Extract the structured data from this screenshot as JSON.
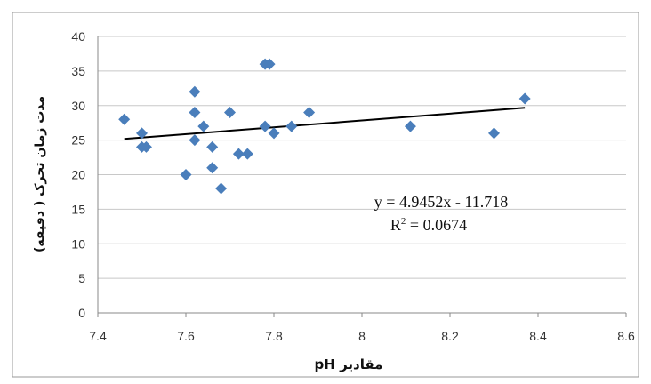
{
  "chart_data": {
    "type": "scatter",
    "title": "",
    "xlabel": "مقادیر pH",
    "ylabel": "مدت زمان تحرک ( دقیقه)",
    "xlim": [
      7.4,
      8.6
    ],
    "ylim": [
      0,
      40
    ],
    "xticks": [
      "7.4",
      "7.6",
      "7.8",
      "8",
      "8.2",
      "8.4",
      "8.6"
    ],
    "yticks": [
      "0",
      "5",
      "10",
      "15",
      "20",
      "25",
      "30",
      "35",
      "40"
    ],
    "grid": true,
    "marker_color": "#4A7EBB",
    "trendline_color": "#000000",
    "x": [
      7.46,
      7.5,
      7.5,
      7.51,
      7.6,
      7.62,
      7.62,
      7.62,
      7.64,
      7.66,
      7.66,
      7.68,
      7.7,
      7.72,
      7.74,
      7.78,
      7.78,
      7.79,
      7.8,
      7.84,
      7.88,
      8.11,
      8.3,
      8.37
    ],
    "y": [
      28,
      26,
      24,
      24,
      20,
      32,
      29,
      25,
      27,
      24,
      21,
      18,
      29,
      23,
      23,
      27,
      36,
      36,
      26,
      27,
      29,
      27,
      26,
      31
    ],
    "trendline": {
      "slope": 4.9452,
      "intercept": -11.718,
      "x_range": [
        7.46,
        8.37
      ]
    },
    "equation_text": "y = 4.9452x - 11.718",
    "r2_label": "R",
    "r2_sup": "2",
    "r2_value": " = 0.0674"
  }
}
